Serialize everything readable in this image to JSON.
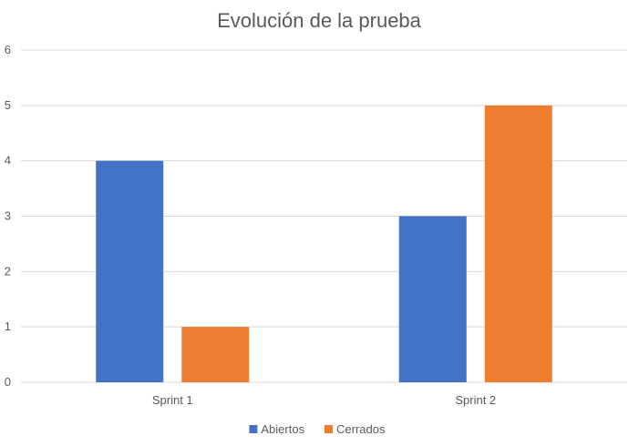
{
  "chart_data": {
    "type": "bar",
    "title": "Evolución de la prueba",
    "xlabel": "",
    "ylabel": "",
    "categories": [
      "Sprint 1",
      "Sprint 2"
    ],
    "series": [
      {
        "name": "Abiertos",
        "values": [
          4,
          3
        ],
        "color": "#4472C4"
      },
      {
        "name": "Cerrados",
        "values": [
          1,
          5
        ],
        "color": "#ED7D31"
      }
    ],
    "ylim": [
      0,
      6
    ],
    "yticks": [
      0,
      1,
      2,
      3,
      4,
      5,
      6
    ],
    "grid": true,
    "legend_position": "bottom"
  }
}
